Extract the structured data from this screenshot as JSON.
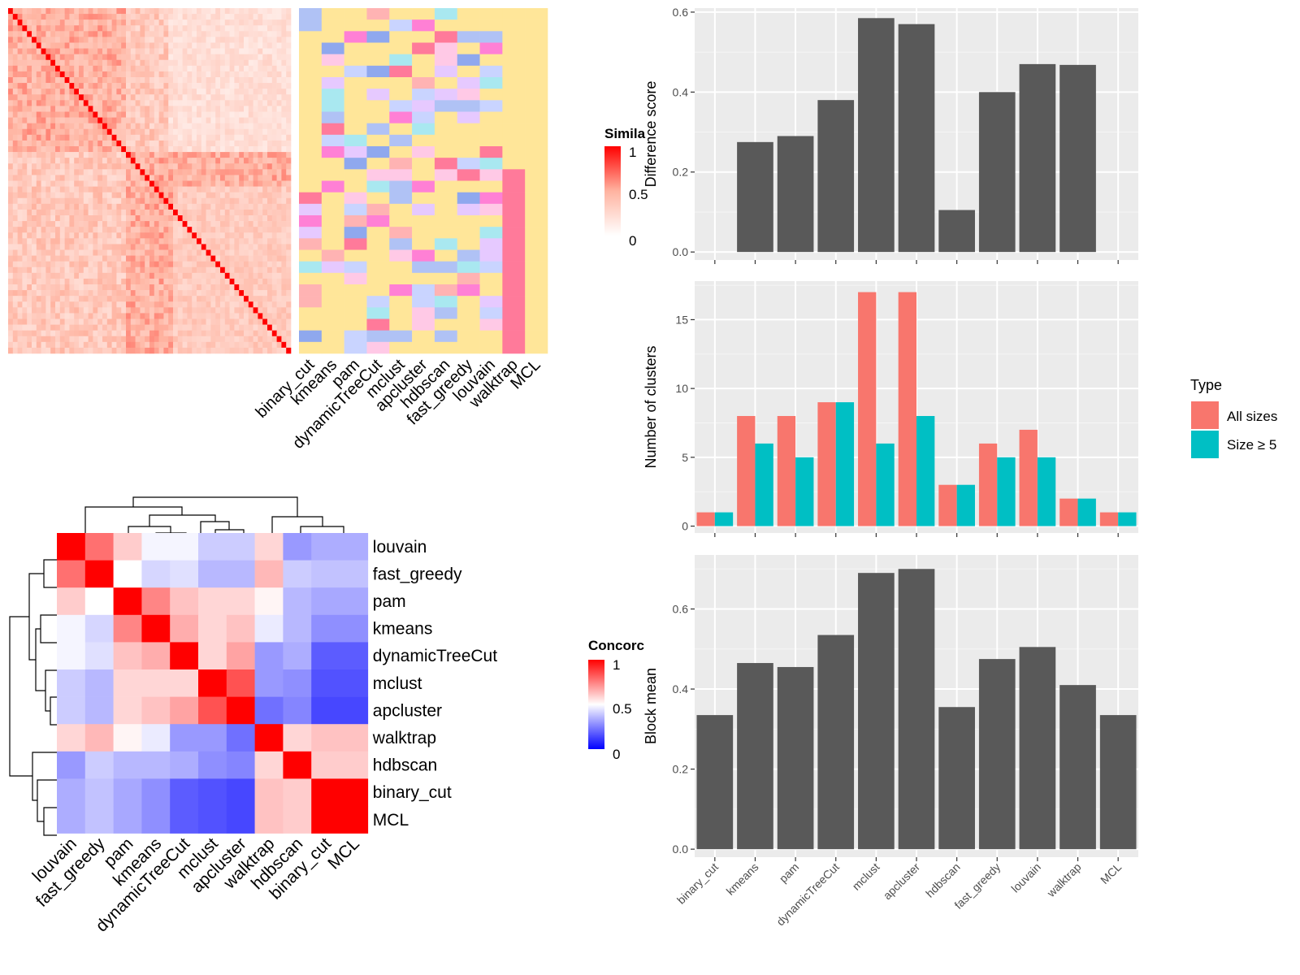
{
  "chart_data": [
    {
      "type": "heatmap",
      "panel": "top-left",
      "description_keys": [
        "similarity_legend",
        "column_labels"
      ],
      "similarity_legend": {
        "title": "Simila",
        "ticks": [
          "1",
          "0.5",
          "0"
        ]
      },
      "column_labels": [
        "binary_cut",
        "kmeans",
        "pam",
        "dynamicTreeCut",
        "mclust",
        "apcluster",
        "hdbscan",
        "fast_greedy",
        "louvain",
        "walktrap",
        "MCL"
      ]
    },
    {
      "type": "heatmap",
      "panel": "bottom-left",
      "legend": {
        "title": "Concorc",
        "ticks": [
          "1",
          "0.5",
          "0"
        ]
      },
      "row_labels": [
        "louvain",
        "fast_greedy",
        "pam",
        "kmeans",
        "dynamicTreeCut",
        "mclust",
        "apcluster",
        "walktrap",
        "hdbscan",
        "binary_cut",
        "MCL"
      ],
      "col_labels": [
        "louvain",
        "fast_greedy",
        "pam",
        "kmeans",
        "dynamicTreeCut",
        "mclust",
        "apcluster",
        "walktrap",
        "hdbscan",
        "binary_cut",
        "MCL"
      ],
      "values": [
        [
          1.0,
          0.78,
          0.6,
          0.48,
          0.48,
          0.4,
          0.4,
          0.58,
          0.3,
          0.34,
          0.34
        ],
        [
          0.78,
          1.0,
          0.5,
          0.42,
          0.44,
          0.36,
          0.36,
          0.64,
          0.4,
          0.38,
          0.38
        ],
        [
          0.6,
          0.5,
          1.0,
          0.74,
          0.62,
          0.58,
          0.58,
          0.52,
          0.36,
          0.33,
          0.33
        ],
        [
          0.48,
          0.42,
          0.74,
          1.0,
          0.66,
          0.58,
          0.62,
          0.46,
          0.36,
          0.28,
          0.28
        ],
        [
          0.48,
          0.44,
          0.62,
          0.66,
          1.0,
          0.58,
          0.68,
          0.3,
          0.34,
          0.18,
          0.18
        ],
        [
          0.4,
          0.36,
          0.58,
          0.58,
          0.58,
          1.0,
          0.84,
          0.3,
          0.28,
          0.16,
          0.16
        ],
        [
          0.4,
          0.36,
          0.58,
          0.62,
          0.68,
          0.84,
          1.0,
          0.22,
          0.26,
          0.14,
          0.14
        ],
        [
          0.58,
          0.64,
          0.52,
          0.46,
          0.3,
          0.3,
          0.22,
          1.0,
          0.58,
          0.62,
          0.62
        ],
        [
          0.3,
          0.4,
          0.36,
          0.36,
          0.34,
          0.28,
          0.26,
          0.58,
          1.0,
          0.6,
          0.6
        ],
        [
          0.34,
          0.38,
          0.33,
          0.28,
          0.18,
          0.16,
          0.14,
          0.62,
          0.6,
          1.0,
          1.0
        ],
        [
          0.34,
          0.38,
          0.33,
          0.28,
          0.18,
          0.16,
          0.14,
          0.62,
          0.6,
          1.0,
          1.0
        ]
      ]
    },
    {
      "type": "bar",
      "panel": "top-right",
      "categories": [
        "binary_cut",
        "kmeans",
        "pam",
        "dynamicTreeCut",
        "mclust",
        "apcluster",
        "hdbscan",
        "fast_greedy",
        "louvain",
        "walktrap",
        "MCL"
      ],
      "values": [
        0,
        0.275,
        0.29,
        0.38,
        0.585,
        0.57,
        0.105,
        0.4,
        0.47,
        0.468,
        0
      ],
      "ylabel": "Difference score",
      "ylim": [
        -0.02,
        0.61
      ],
      "yticks": [
        "0.0",
        "0.2",
        "0.4",
        "0.6"
      ],
      "grid": true
    },
    {
      "type": "bar",
      "panel": "middle-right",
      "categories": [
        "binary_cut",
        "kmeans",
        "pam",
        "dynamicTreeCut",
        "mclust",
        "apcluster",
        "hdbscan",
        "fast_greedy",
        "louvain",
        "walktrap",
        "MCL"
      ],
      "series": [
        {
          "name": "All sizes",
          "color": "#F8766D",
          "values": [
            1,
            8,
            8,
            9,
            17,
            17,
            3,
            6,
            7,
            2,
            1
          ]
        },
        {
          "name": "Size ≥ 5",
          "color": "#00BFC4",
          "values": [
            1,
            6,
            5,
            9,
            6,
            8,
            3,
            5,
            5,
            2,
            1
          ]
        }
      ],
      "ylabel": "Number of clusters",
      "ylim": [
        -0.5,
        17.8
      ],
      "yticks": [
        "0",
        "5",
        "10",
        "15"
      ],
      "legend": {
        "title": "Type",
        "placement": "right"
      },
      "grid": true
    },
    {
      "type": "bar",
      "panel": "bottom-right",
      "categories": [
        "binary_cut",
        "kmeans",
        "pam",
        "dynamicTreeCut",
        "mclust",
        "apcluster",
        "hdbscan",
        "fast_greedy",
        "louvain",
        "walktrap",
        "MCL"
      ],
      "values": [
        0.335,
        0.465,
        0.455,
        0.535,
        0.69,
        0.7,
        0.355,
        0.475,
        0.505,
        0.41,
        0.335
      ],
      "ylabel": "Block mean",
      "ylim": [
        -0.02,
        0.735
      ],
      "yticks": [
        "0.0",
        "0.2",
        "0.4",
        "0.6"
      ],
      "grid": true
    }
  ],
  "colors": {
    "gg_panel": "#EBEBEB",
    "gg_bar": "#595959",
    "heat_high": "#FF0000",
    "heat_mid": "#FFFFFF",
    "heat_low": "#0000FF"
  }
}
